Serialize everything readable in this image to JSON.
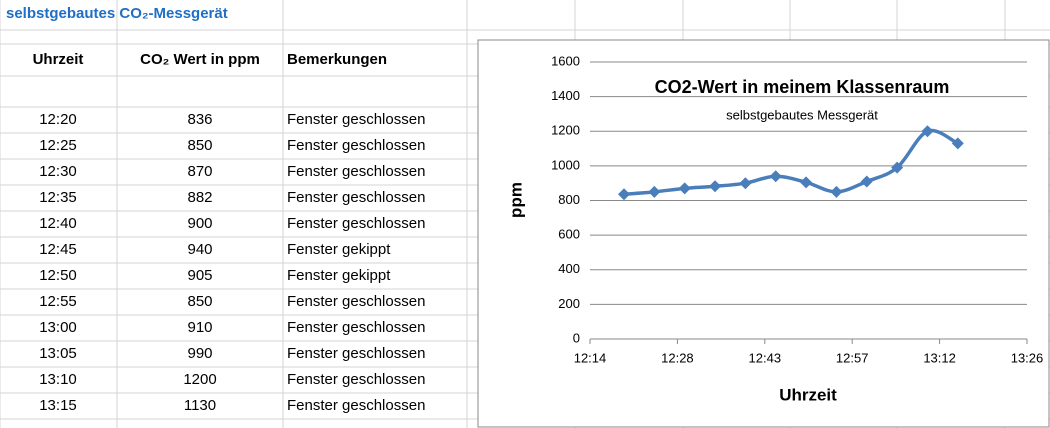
{
  "sheet_title": "selbstgebautes CO₂-Messgerät",
  "table": {
    "headers": [
      "Uhrzeit",
      "CO₂ Wert in ppm",
      "Bemerkungen"
    ],
    "remarks": [
      "Fenster geschlossen",
      "Fenster geschlossen",
      "Fenster geschlossen",
      "Fenster geschlossen",
      "Fenster geschlossen",
      "Fenster gekippt",
      "Fenster gekippt",
      "Fenster geschlossen",
      "Fenster geschlossen",
      "Fenster geschlossen",
      "Fenster geschlossen",
      "Fenster geschlossen"
    ]
  },
  "chart_data": {
    "type": "line",
    "title": "CO2-Wert in meinem Klassenraum",
    "subtitle": "selbstgebautes Messgerät",
    "x_label": "Uhrzeit",
    "y_label": "ppm",
    "x": [
      "12:20",
      "12:25",
      "12:30",
      "12:35",
      "12:40",
      "12:45",
      "12:50",
      "12:55",
      "13:00",
      "13:05",
      "13:10",
      "13:15"
    ],
    "values": [
      836,
      850,
      870,
      882,
      900,
      940,
      905,
      850,
      910,
      990,
      1200,
      1130
    ],
    "color": "#4a7ebb",
    "xlim": [
      734.4,
      806.4
    ],
    "xticks": [
      {
        "value": 734.4,
        "label": "12:14"
      },
      {
        "value": 748.8,
        "label": "12:28"
      },
      {
        "value": 763.2,
        "label": "12:43"
      },
      {
        "value": 777.6,
        "label": "12:57"
      },
      {
        "value": 792,
        "label": "13:12"
      },
      {
        "value": 806.4,
        "label": "13:26"
      }
    ],
    "ylim": [
      0,
      1600
    ],
    "yticks": [
      0,
      200,
      400,
      600,
      800,
      1000,
      1200,
      1400,
      1600
    ],
    "grid": true
  }
}
